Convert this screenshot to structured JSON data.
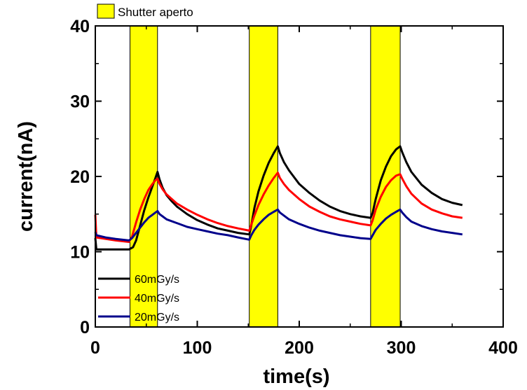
{
  "chart_data": {
    "type": "line",
    "title": "",
    "xlabel": "time(s)",
    "ylabel": "current(nA)",
    "xlim": [
      0,
      400
    ],
    "ylim": [
      0,
      40
    ],
    "xticks": [
      0,
      100,
      200,
      300,
      400
    ],
    "yticks": [
      0,
      10,
      20,
      30,
      40
    ],
    "grid": false,
    "legend_placement": "bottom-left",
    "shutter_legend_label": "Shutter aperto",
    "shutter_color": "#ffff00",
    "shutter_intervals": [
      [
        34,
        61
      ],
      [
        151,
        179
      ],
      [
        270,
        299
      ]
    ],
    "series": [
      {
        "name": "60mGy/s",
        "color": "#000000",
        "points": [
          [
            0,
            11.8
          ],
          [
            1,
            10.3
          ],
          [
            10,
            10.3
          ],
          [
            20,
            10.3
          ],
          [
            33,
            10.3
          ],
          [
            37,
            10.6
          ],
          [
            40,
            11.5
          ],
          [
            44,
            13.5
          ],
          [
            48,
            15.5
          ],
          [
            52,
            17.2
          ],
          [
            56,
            18.7
          ],
          [
            59,
            19.8
          ],
          [
            61,
            20.6
          ],
          [
            63,
            19.6
          ],
          [
            66,
            18.5
          ],
          [
            70,
            17.5
          ],
          [
            75,
            16.7
          ],
          [
            80,
            16.0
          ],
          [
            90,
            15.0
          ],
          [
            100,
            14.2
          ],
          [
            110,
            13.6
          ],
          [
            120,
            13.1
          ],
          [
            130,
            12.8
          ],
          [
            140,
            12.5
          ],
          [
            151,
            12.3
          ],
          [
            153,
            13.5
          ],
          [
            156,
            15.8
          ],
          [
            160,
            18.0
          ],
          [
            165,
            20.1
          ],
          [
            170,
            21.8
          ],
          [
            175,
            23.1
          ],
          [
            179,
            24.0
          ],
          [
            181,
            23.1
          ],
          [
            185,
            21.9
          ],
          [
            190,
            20.8
          ],
          [
            200,
            19.0
          ],
          [
            210,
            17.8
          ],
          [
            220,
            16.8
          ],
          [
            230,
            16.0
          ],
          [
            240,
            15.4
          ],
          [
            250,
            15.0
          ],
          [
            260,
            14.7
          ],
          [
            270,
            14.5
          ],
          [
            272,
            15.2
          ],
          [
            275,
            17.0
          ],
          [
            280,
            19.5
          ],
          [
            285,
            21.3
          ],
          [
            290,
            22.7
          ],
          [
            295,
            23.6
          ],
          [
            299,
            24.0
          ],
          [
            301,
            23.2
          ],
          [
            305,
            21.9
          ],
          [
            310,
            20.6
          ],
          [
            320,
            18.9
          ],
          [
            330,
            17.8
          ],
          [
            340,
            17.0
          ],
          [
            350,
            16.5
          ],
          [
            360,
            16.2
          ]
        ]
      },
      {
        "name": "40mGy/s",
        "color": "#ff0000",
        "points": [
          [
            0,
            14.9
          ],
          [
            1,
            11.9
          ],
          [
            10,
            11.7
          ],
          [
            20,
            11.5
          ],
          [
            33,
            11.3
          ],
          [
            36,
            12.0
          ],
          [
            40,
            13.9
          ],
          [
            44,
            15.6
          ],
          [
            48,
            17.0
          ],
          [
            52,
            18.2
          ],
          [
            56,
            19.0
          ],
          [
            59,
            19.5
          ],
          [
            61,
            19.7
          ],
          [
            63,
            19.0
          ],
          [
            66,
            18.3
          ],
          [
            70,
            17.6
          ],
          [
            75,
            17.0
          ],
          [
            80,
            16.4
          ],
          [
            90,
            15.6
          ],
          [
            100,
            14.9
          ],
          [
            110,
            14.3
          ],
          [
            120,
            13.8
          ],
          [
            130,
            13.4
          ],
          [
            140,
            13.1
          ],
          [
            151,
            12.8
          ],
          [
            153,
            13.6
          ],
          [
            156,
            14.8
          ],
          [
            160,
            16.2
          ],
          [
            165,
            17.6
          ],
          [
            170,
            18.8
          ],
          [
            175,
            19.8
          ],
          [
            179,
            20.5
          ],
          [
            181,
            19.8
          ],
          [
            185,
            19.0
          ],
          [
            190,
            18.2
          ],
          [
            200,
            17.0
          ],
          [
            210,
            16.0
          ],
          [
            220,
            15.3
          ],
          [
            230,
            14.7
          ],
          [
            240,
            14.3
          ],
          [
            250,
            14.0
          ],
          [
            260,
            13.7
          ],
          [
            270,
            13.5
          ],
          [
            272,
            14.2
          ],
          [
            275,
            15.6
          ],
          [
            280,
            17.3
          ],
          [
            285,
            18.6
          ],
          [
            290,
            19.5
          ],
          [
            295,
            20.1
          ],
          [
            299,
            20.3
          ],
          [
            301,
            19.7
          ],
          [
            305,
            18.7
          ],
          [
            310,
            17.7
          ],
          [
            320,
            16.4
          ],
          [
            330,
            15.6
          ],
          [
            340,
            15.1
          ],
          [
            350,
            14.7
          ],
          [
            360,
            14.5
          ]
        ]
      },
      {
        "name": "20mGy/s",
        "color": "#00008b",
        "points": [
          [
            0,
            12.6
          ],
          [
            1,
            12.2
          ],
          [
            10,
            11.9
          ],
          [
            20,
            11.7
          ],
          [
            33,
            11.5
          ],
          [
            36,
            11.8
          ],
          [
            40,
            12.5
          ],
          [
            44,
            13.2
          ],
          [
            48,
            13.9
          ],
          [
            52,
            14.5
          ],
          [
            56,
            14.9
          ],
          [
            59,
            15.2
          ],
          [
            61,
            15.4
          ],
          [
            63,
            15.0
          ],
          [
            66,
            14.7
          ],
          [
            70,
            14.3
          ],
          [
            80,
            13.8
          ],
          [
            90,
            13.3
          ],
          [
            100,
            13.0
          ],
          [
            110,
            12.7
          ],
          [
            120,
            12.4
          ],
          [
            130,
            12.2
          ],
          [
            140,
            11.9
          ],
          [
            151,
            11.6
          ],
          [
            153,
            12.2
          ],
          [
            156,
            12.9
          ],
          [
            160,
            13.6
          ],
          [
            165,
            14.3
          ],
          [
            170,
            14.9
          ],
          [
            175,
            15.3
          ],
          [
            179,
            15.6
          ],
          [
            181,
            15.2
          ],
          [
            185,
            14.8
          ],
          [
            190,
            14.3
          ],
          [
            200,
            13.7
          ],
          [
            210,
            13.2
          ],
          [
            220,
            12.8
          ],
          [
            230,
            12.5
          ],
          [
            240,
            12.2
          ],
          [
            250,
            12.0
          ],
          [
            260,
            11.8
          ],
          [
            270,
            11.7
          ],
          [
            272,
            12.2
          ],
          [
            275,
            12.9
          ],
          [
            280,
            13.7
          ],
          [
            285,
            14.4
          ],
          [
            290,
            14.9
          ],
          [
            295,
            15.3
          ],
          [
            299,
            15.6
          ],
          [
            301,
            15.2
          ],
          [
            305,
            14.6
          ],
          [
            310,
            14.0
          ],
          [
            320,
            13.4
          ],
          [
            330,
            13.0
          ],
          [
            340,
            12.7
          ],
          [
            350,
            12.5
          ],
          [
            360,
            12.3
          ]
        ]
      }
    ]
  }
}
